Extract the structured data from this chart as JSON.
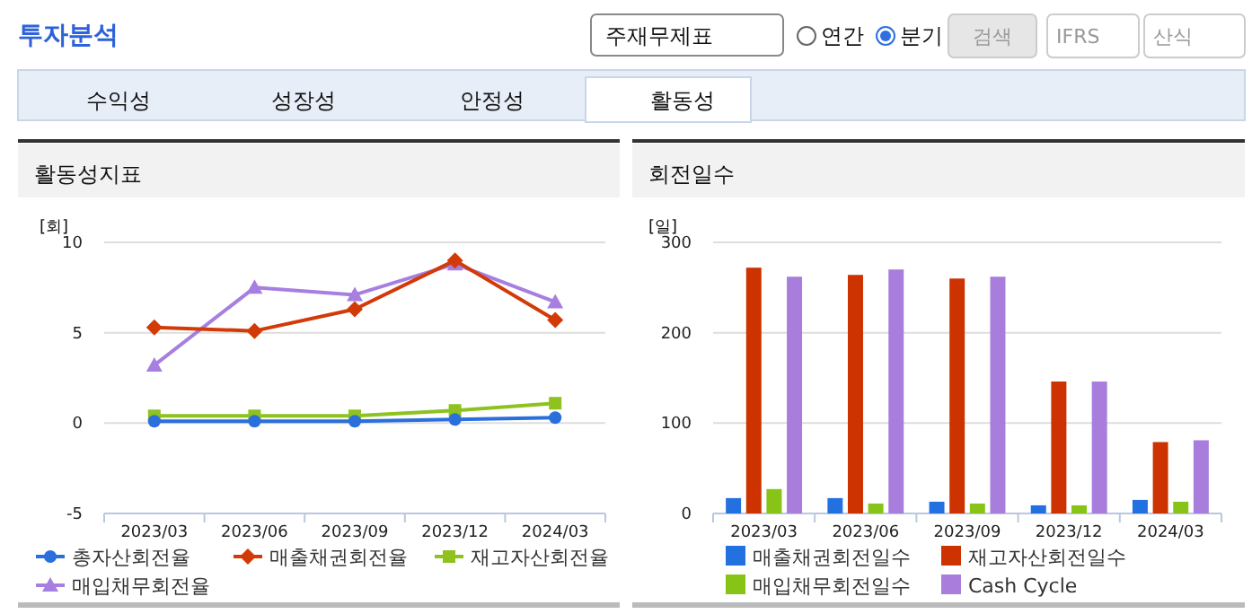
{
  "chart_data": [
    {
      "type": "other",
      "title": "투자분석",
      "annotations": [
        "주재무제표",
        "연간",
        "분기",
        "검색",
        "IFRS",
        "산식",
        "수익성",
        "성장성",
        "안정성",
        "활동성"
      ]
    },
    {
      "type": "line",
      "title": "활동성지표",
      "ylabel": "[회]",
      "categories": [
        "2023/03",
        "2023/06",
        "2023/09",
        "2023/12",
        "2024/03"
      ],
      "ylim": [
        -5,
        10
      ],
      "yticks": [
        -5,
        0,
        5,
        10
      ],
      "grid": "y",
      "legend": "bottom",
      "series": [
        {
          "name": "총자산회전율",
          "color": "#2a6fdb",
          "marker": "circle",
          "values": [
            0.1,
            0.1,
            0.1,
            0.2,
            0.3
          ]
        },
        {
          "name": "매출채권회전율",
          "color": "#d23a08",
          "marker": "diamond",
          "values": [
            5.3,
            5.1,
            6.3,
            9.0,
            5.7
          ]
        },
        {
          "name": "재고자산회전율",
          "color": "#8dc21f",
          "marker": "square",
          "values": [
            0.4,
            0.4,
            0.4,
            0.7,
            1.1
          ]
        },
        {
          "name": "매입채무회전율",
          "color": "#a77fe0",
          "marker": "triangle",
          "values": [
            3.2,
            7.5,
            7.1,
            8.8,
            6.7
          ]
        }
      ]
    },
    {
      "type": "bar",
      "title": "회전일수",
      "ylabel": "[일]",
      "categories": [
        "2023/03",
        "2023/06",
        "2023/09",
        "2023/12",
        "2024/03"
      ],
      "ylim": [
        0,
        300
      ],
      "yticks": [
        0,
        100,
        200,
        300
      ],
      "grid": "y",
      "legend": "bottom",
      "series": [
        {
          "name": "매출채권회전일수",
          "color": "#2370e0",
          "values": [
            17,
            17,
            13,
            9,
            15
          ]
        },
        {
          "name": "재고자산회전일수",
          "color": "#cc3300",
          "values": [
            272,
            264,
            260,
            146,
            79
          ]
        },
        {
          "name": "매입채무회전일수",
          "color": "#88c417",
          "values": [
            27,
            11,
            11,
            9,
            13
          ]
        },
        {
          "name": "Cash Cycle",
          "color": "#a87ddc",
          "values": [
            262,
            270,
            262,
            146,
            81
          ]
        }
      ]
    }
  ]
}
